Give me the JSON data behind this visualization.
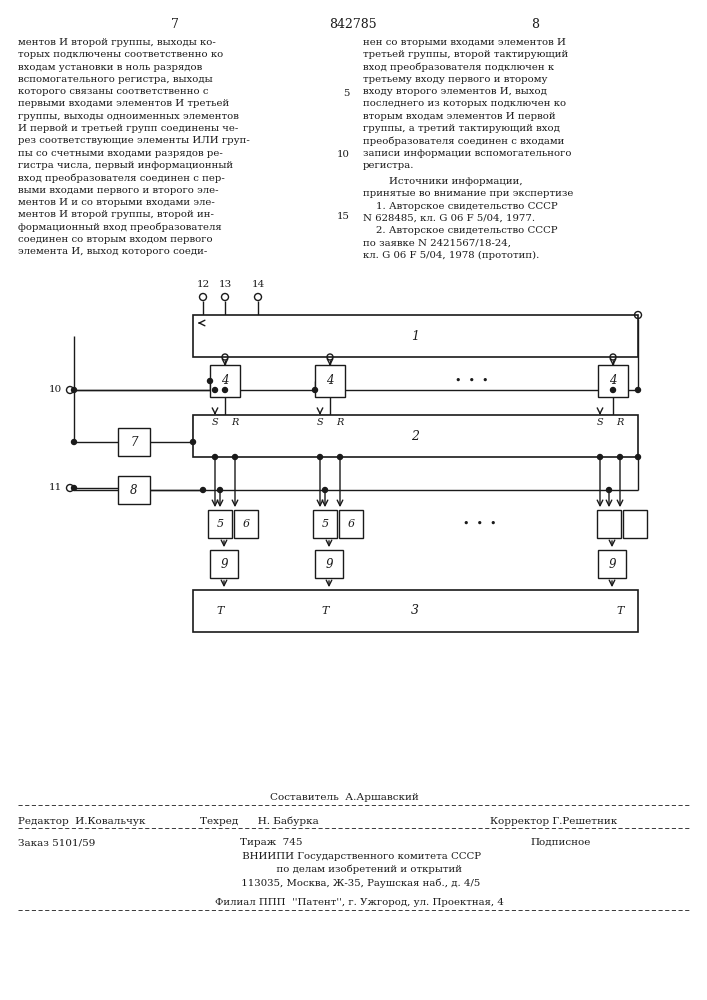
{
  "bg_color": "#ffffff",
  "page_num_left": "7",
  "page_num_center": "842785",
  "page_num_right": "8",
  "left_text_lines": [
    "ментов И второй группы, выходы ко-",
    "торых подключены соответственно ко",
    "входам установки в ноль разрядов",
    "вспомогательного регистра, выходы",
    "которого связаны соответственно с",
    "первыми входами элементов И третьей",
    "группы, выходы одноименных элементов",
    "И первой и третьей групп соединены че-",
    "рез соответствующие элементы ИЛИ груп-",
    "пы со счетными входами разрядов ре-",
    "гистра числа, первый информационный",
    "вход преобразователя соединен с пер-",
    "выми входами первого и второго эле-",
    "ментов И и со вторыми входами эле-",
    "ментов И второй группы, второй ин-",
    "формационный вход преобразователя",
    "соединен со вторым входом первого",
    "элемента И, выход которого соеди-"
  ],
  "right_text_lines": [
    "нен со вторыми входами элементов И",
    "третьей группы, второй тактирующий",
    "вход преобразователя подключен к",
    "третьему входу первого и второму",
    "входу второго элементов И, выход",
    "последнего из которых подключен ко",
    "вторым входам элементов И первой",
    "группы, а третий тактирующий вход",
    "преобразователя соединен с входами",
    "записи информации вспомогательного",
    "регистра."
  ],
  "right_sources_lines": [
    "        Источники информации,",
    "принятые во внимание при экспертизе",
    "    1. Авторское свидетельство СССР",
    "N 628485, кл. G 06 F 5/04, 1977.",
    "    2. Авторское свидетельство СССР",
    "по заявке N 2421567/18-24,",
    "кл. G 06 F 5/04, 1978 (прототип)."
  ],
  "line_num_rows": [
    5,
    10,
    15
  ],
  "footer_sestavitel": "Составитель  А.Аршавский",
  "footer_redaktor": "Редактор  И.Ковальчук",
  "footer_tehred": "Техред      Н. Бабурка",
  "footer_korrektor": "Корректор Г.Решетник",
  "footer_zakaz": "Заказ 5101/59",
  "footer_tirazh": "Тираж  745",
  "footer_podpisnoe": "Подписное",
  "footer_vnipi_lines": [
    "     ВНИИПИ Государственного комитета СССР",
    "          по делам изобретений и открытий",
    "     113035, Москва, Ж-35, Раушская наб., д. 4/5"
  ],
  "footer_filial": "    Филиал ППП  ''Патент'', г. Ужгород, ул. Проектная, 4"
}
